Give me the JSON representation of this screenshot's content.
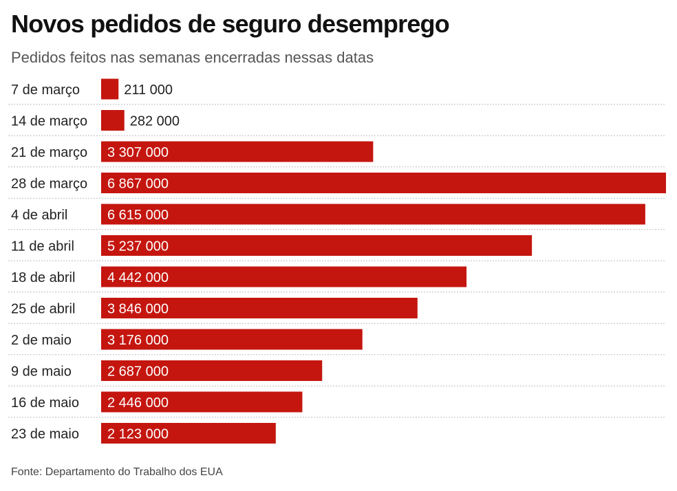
{
  "header": {
    "title": "Novos pedidos de seguro desemprego",
    "subtitle": "Pedidos feitos nas semanas encerradas nessas datas"
  },
  "footer": {
    "source": "Fonte: Departamento do Trabalho dos EUA"
  },
  "colors": {
    "bar": "#c4160f",
    "grid": "#bbbbbb",
    "label_inside": "#ffffff",
    "label_outside": "#222222"
  },
  "chart_data": {
    "type": "bar",
    "orientation": "horizontal",
    "title": "Novos pedidos de seguro desemprego",
    "subtitle": "Pedidos feitos nas semanas encerradas nessas datas",
    "categories": [
      "7 de março",
      "14 de março",
      "21 de março",
      "28 de março",
      "4 de abril",
      "11 de abril",
      "18 de abril",
      "25 de abril",
      "2 de maio",
      "9 de maio",
      "16 de maio",
      "23 de maio"
    ],
    "values": [
      211000,
      282000,
      3307000,
      6867000,
      6615000,
      5237000,
      4442000,
      3846000,
      3176000,
      2687000,
      2446000,
      2123000
    ],
    "value_labels": [
      "211 000",
      "282 000",
      "3 307 000",
      "6 867 000",
      "6 615 000",
      "5 237 000",
      "4 442 000",
      "3 846 000",
      "3 176 000",
      "2 687 000",
      "2 446 000",
      "2 123 000"
    ],
    "xlabel": "",
    "ylabel": "",
    "xlim": [
      0,
      6867000
    ],
    "grid": false,
    "row_separators": "dotted",
    "legend": "none"
  }
}
